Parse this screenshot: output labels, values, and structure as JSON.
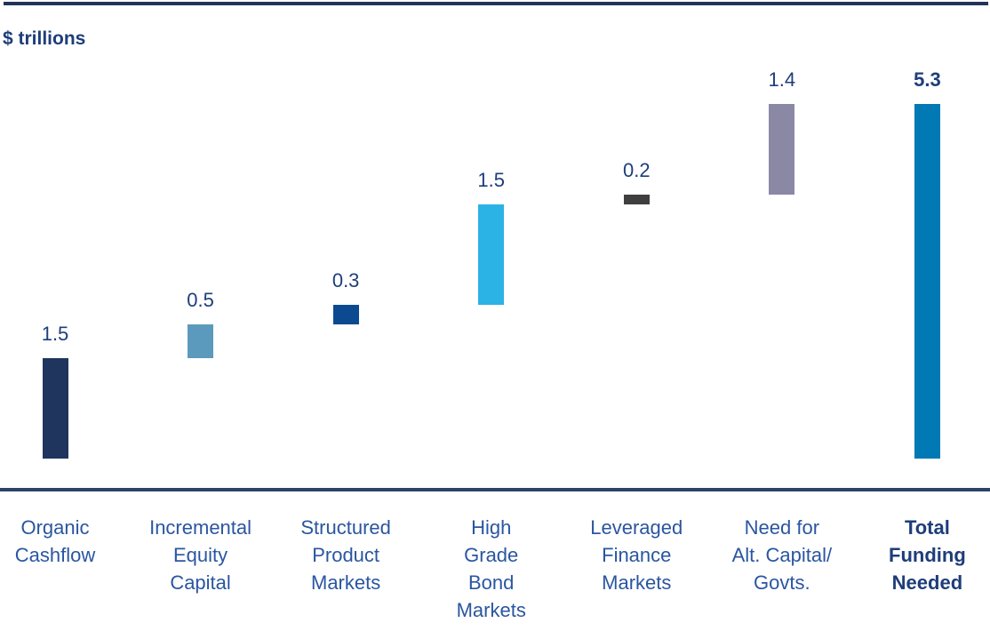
{
  "chart_data": {
    "type": "bar",
    "subtype": "waterfall",
    "title": "",
    "unit_label": "$ trillions",
    "ylabel": "$ trillions",
    "ylim": [
      0,
      5.5
    ],
    "grid": false,
    "legend": "none",
    "colors": {
      "value_label_text": "#1e3d7a",
      "category_label_text": "#2a56a0",
      "total_text": "#1e3d7a",
      "rule": "#26395f"
    },
    "categories": [
      "Organic Cashflow",
      "Incremental Equity Capital",
      "Structured Product Markets",
      "High Grade Bond Markets",
      "Leveraged Finance Markets",
      "Need for Alt. Capital/ Govts.",
      "Total Funding Needed"
    ],
    "values": [
      1.5,
      0.5,
      0.3,
      1.5,
      0.2,
      1.4,
      5.3
    ],
    "columns": [
      {
        "category": "Organic Cashflow",
        "category_lines": [
          "Organic",
          "Cashflow"
        ],
        "value": 1.5,
        "value_label": "1.5",
        "cumulative_from": 0.0,
        "cumulative_to": 1.5,
        "color": "#1f355e",
        "is_total": false
      },
      {
        "category": "Incremental Equity Capital",
        "category_lines": [
          "Incremental",
          "Equity",
          "Capital"
        ],
        "value": 0.5,
        "value_label": "0.5",
        "cumulative_from": 1.5,
        "cumulative_to": 2.0,
        "color": "#5c9abd",
        "is_total": false
      },
      {
        "category": "Structured Product Markets",
        "category_lines": [
          "Structured",
          "Product",
          "Markets"
        ],
        "value": 0.3,
        "value_label": "0.3",
        "cumulative_from": 2.0,
        "cumulative_to": 2.3,
        "color": "#0b4a91",
        "is_total": false
      },
      {
        "category": "High Grade Bond Markets",
        "category_lines": [
          "High",
          "Grade",
          "Bond",
          "Markets"
        ],
        "value": 1.5,
        "value_label": "1.5",
        "cumulative_from": 2.3,
        "cumulative_to": 3.8,
        "color": "#2bb3e6",
        "is_total": false
      },
      {
        "category": "Leveraged Finance Markets",
        "category_lines": [
          "Leveraged",
          "Finance",
          "Markets"
        ],
        "value": 0.2,
        "value_label": "0.2",
        "cumulative_from": 3.8,
        "cumulative_to": 3.95,
        "color": "#3f3f3f",
        "is_total": false
      },
      {
        "category": "Need for Alt. Capital/ Govts.",
        "category_lines": [
          "Need for",
          "Alt. Capital/",
          "Govts."
        ],
        "value": 1.4,
        "value_label": "1.4",
        "cumulative_from": 3.95,
        "cumulative_to": 5.3,
        "color": "#8b88a6",
        "is_total": false
      },
      {
        "category": "Total Funding Needed",
        "category_lines": [
          "Total",
          "Funding",
          "Needed"
        ],
        "value": 5.3,
        "value_label": "5.3",
        "cumulative_from": 0.0,
        "cumulative_to": 5.3,
        "color": "#0079b4",
        "is_total": true
      }
    ]
  }
}
